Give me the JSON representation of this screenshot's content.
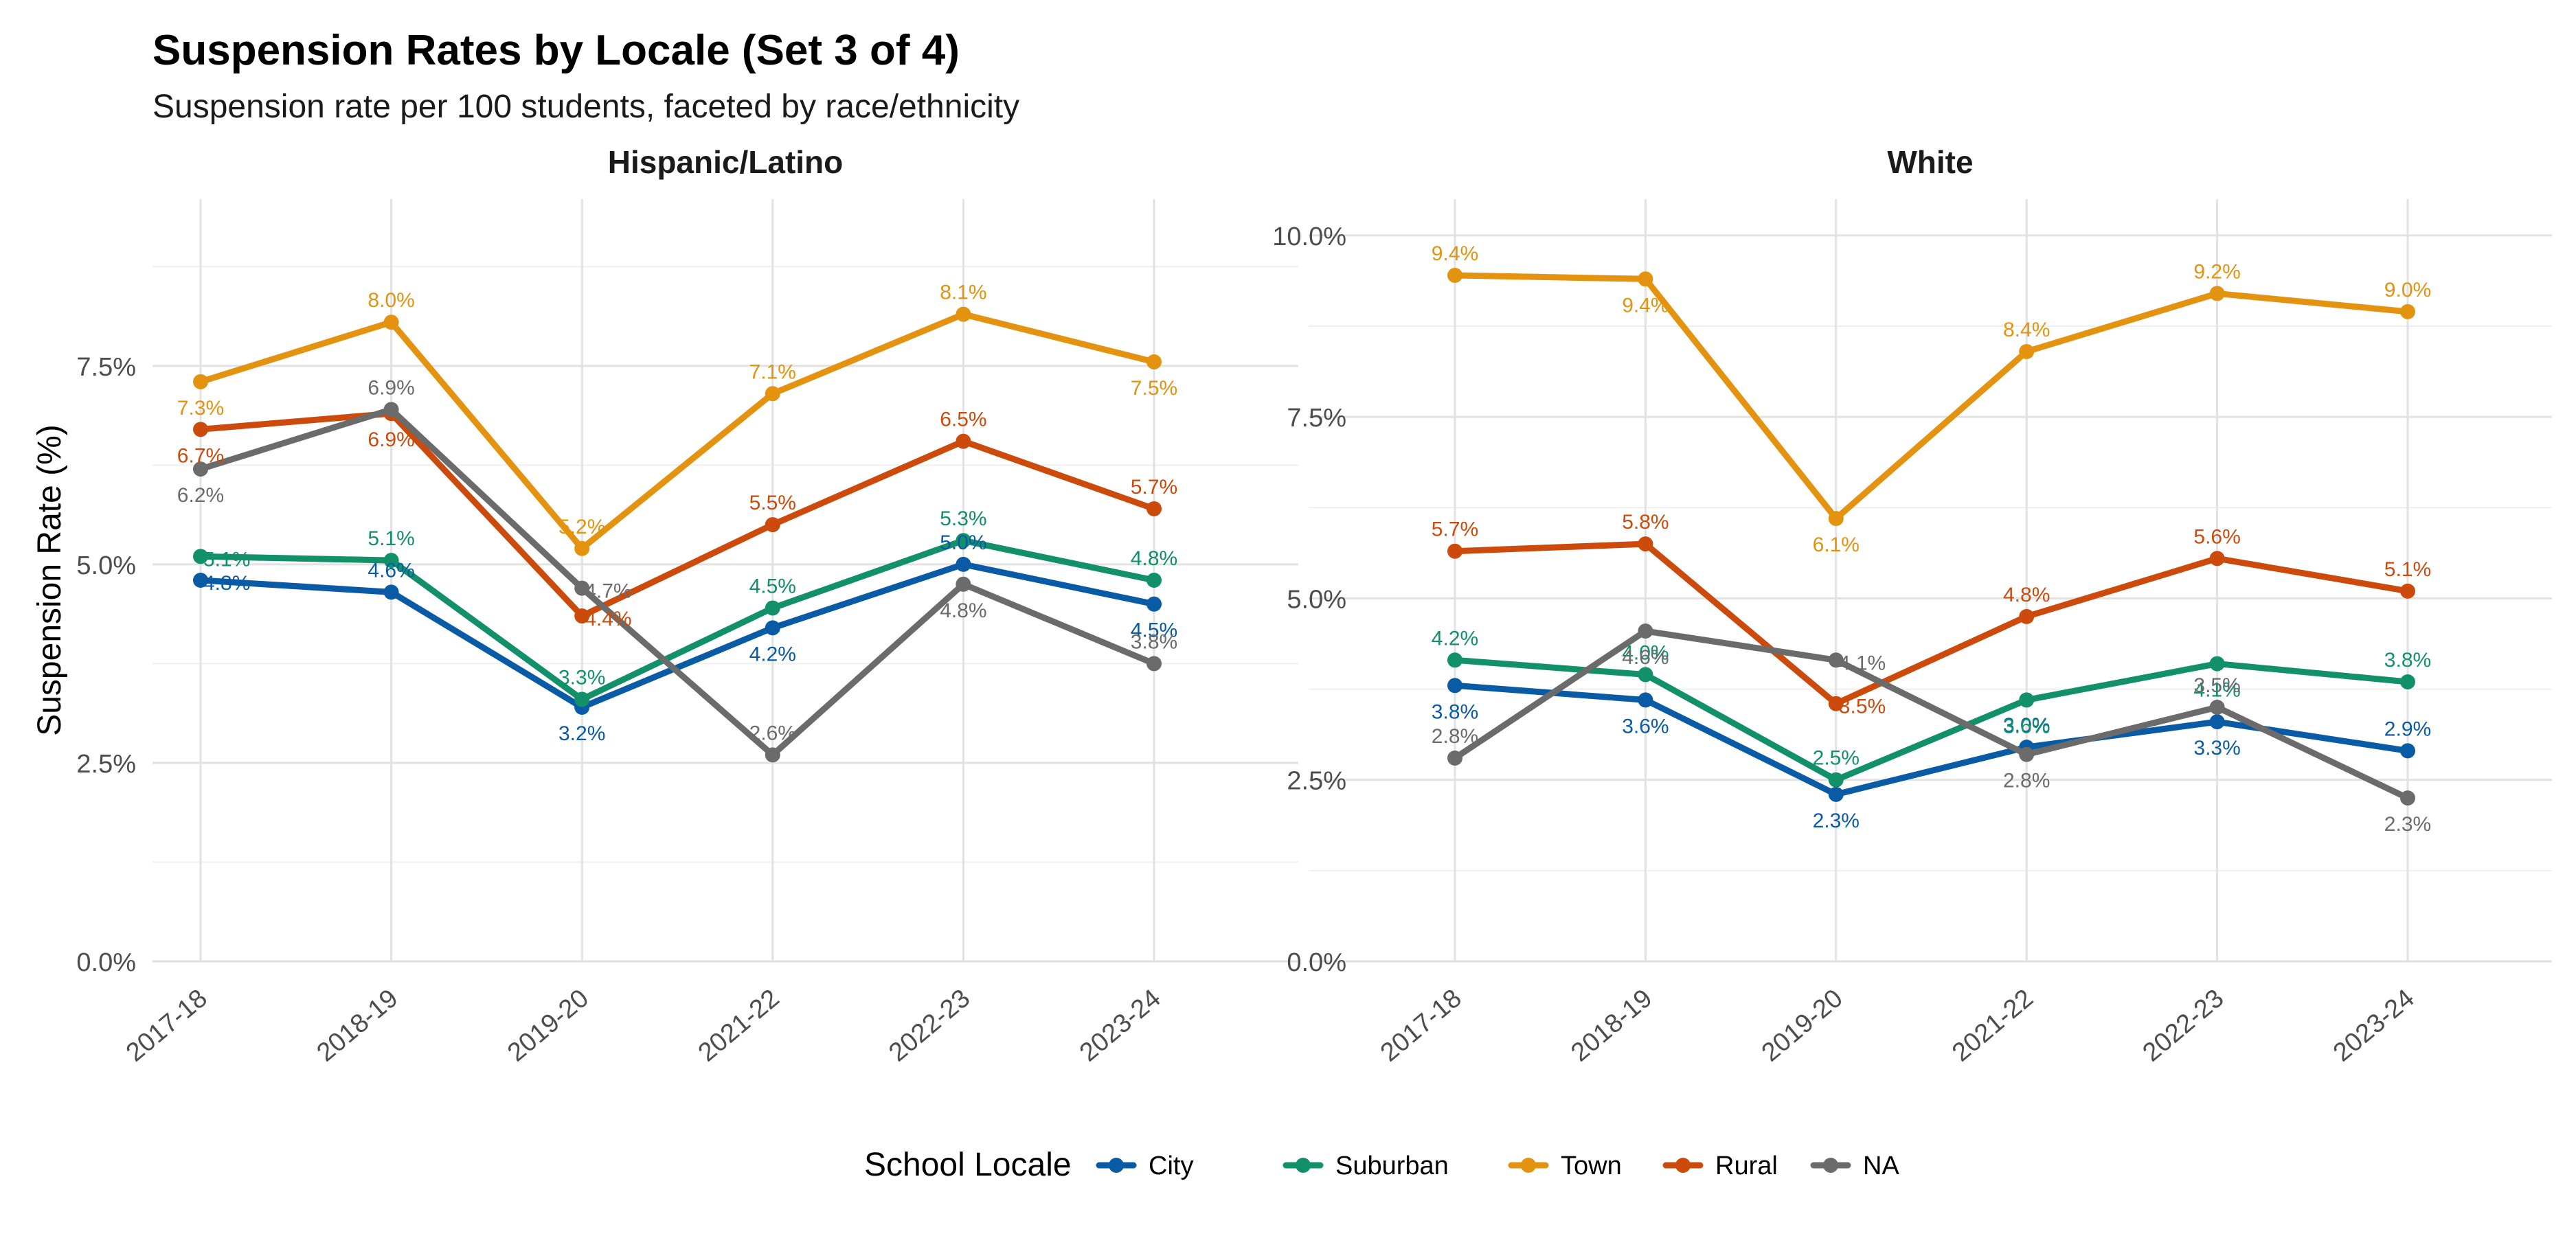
{
  "title": "Suspension Rates by Locale (Set 3 of 4)",
  "subtitle": "Suspension rate per 100 students, faceted by race/ethnicity",
  "ylabel": "Suspension Rate (%)",
  "legend": {
    "title": "School Locale",
    "placement": "bottom"
  },
  "colors": {
    "City": "#0a5ba6",
    "Suburban": "#12906a",
    "Town": "#e3930f",
    "Rural": "#cc4b0c",
    "NA": "#6b6b6b"
  },
  "chart_data": [
    {
      "type": "line",
      "facet": "Hispanic/Latino",
      "categories": [
        "2017-18",
        "2018-19",
        "2019-20",
        "2021-22",
        "2022-23",
        "2023-24"
      ],
      "ylim": [
        0,
        9.6
      ],
      "yticks": [
        0,
        2.5,
        5.0,
        7.5
      ],
      "ytick_labels": [
        "0.0%",
        "2.5%",
        "5.0%",
        "7.5%"
      ],
      "grid": true,
      "series": [
        {
          "name": "City",
          "values": [
            4.8,
            4.65,
            3.2,
            4.2,
            5.0,
            4.5
          ],
          "labels": [
            "4.8%",
            "4.6%",
            "3.2%",
            "4.2%",
            "5.0%",
            "4.5%"
          ],
          "label_pos": [
            "right",
            "above",
            "below",
            "below",
            "above",
            "below"
          ]
        },
        {
          "name": "Suburban",
          "values": [
            5.1,
            5.05,
            3.3,
            4.45,
            5.3,
            4.8
          ],
          "labels": [
            "5.1%",
            "5.1%",
            "3.3%",
            "4.5%",
            "5.3%",
            "4.8%"
          ],
          "label_pos": [
            "right",
            "above",
            "above",
            "above",
            "above",
            "above"
          ]
        },
        {
          "name": "Town",
          "values": [
            7.3,
            8.05,
            5.2,
            7.15,
            8.15,
            7.55
          ],
          "labels": [
            "7.3%",
            "8.0%",
            "5.2%",
            "7.1%",
            "8.1%",
            "7.5%"
          ],
          "label_pos": [
            "below",
            "above",
            "above",
            "above",
            "above",
            "below"
          ]
        },
        {
          "name": "Rural",
          "values": [
            6.7,
            6.9,
            4.35,
            5.5,
            6.55,
            5.7
          ],
          "labels": [
            "6.7%",
            "6.9%",
            "4.4%",
            "5.5%",
            "6.5%",
            "5.7%"
          ],
          "label_pos": [
            "below",
            "below",
            "right",
            "above",
            "above",
            "above"
          ]
        },
        {
          "name": "NA",
          "values": [
            6.2,
            6.95,
            4.7,
            2.6,
            4.75,
            3.75
          ],
          "labels": [
            "6.2%",
            "6.9%",
            "4.7%",
            "2.6%",
            "4.8%",
            "3.8%"
          ],
          "label_pos": [
            "below",
            "above",
            "right",
            "above",
            "below",
            "above"
          ]
        }
      ]
    },
    {
      "type": "line",
      "facet": "White",
      "categories": [
        "2017-18",
        "2018-19",
        "2019-20",
        "2021-22",
        "2022-23",
        "2023-24"
      ],
      "ylim": [
        0,
        10.5
      ],
      "yticks": [
        0,
        2.5,
        5.0,
        7.5,
        10.0
      ],
      "ytick_labels": [
        "0.0%",
        "2.5%",
        "5.0%",
        "7.5%",
        "10.0%"
      ],
      "grid": true,
      "series": [
        {
          "name": "City",
          "values": [
            3.8,
            3.6,
            2.3,
            2.95,
            3.3,
            2.9
          ],
          "labels": [
            "3.8%",
            "3.6%",
            "2.3%",
            "3.0%",
            "3.3%",
            "2.9%"
          ],
          "label_pos": [
            "below",
            "below",
            "below",
            "above",
            "below",
            "above"
          ]
        },
        {
          "name": "Suburban",
          "values": [
            4.15,
            3.95,
            2.5,
            3.6,
            4.1,
            3.85
          ],
          "labels": [
            "4.2%",
            "4.0%",
            "2.5%",
            "3.6%",
            "4.1%",
            "3.8%"
          ],
          "label_pos": [
            "above",
            "above",
            "above",
            "below",
            "below",
            "above"
          ]
        },
        {
          "name": "Town",
          "values": [
            9.45,
            9.4,
            6.1,
            8.4,
            9.2,
            8.95
          ],
          "labels": [
            "9.4%",
            "9.4%",
            "6.1%",
            "8.4%",
            "9.2%",
            "9.0%"
          ],
          "label_pos": [
            "above",
            "below",
            "below",
            "above",
            "above",
            "above"
          ]
        },
        {
          "name": "Rural",
          "values": [
            5.65,
            5.75,
            3.55,
            4.75,
            5.55,
            5.1
          ],
          "labels": [
            "5.7%",
            "5.8%",
            "3.5%",
            "4.8%",
            "5.6%",
            "5.1%"
          ],
          "label_pos": [
            "above",
            "above",
            "right",
            "above",
            "above",
            "above"
          ]
        },
        {
          "name": "NA",
          "values": [
            2.8,
            4.55,
            4.15,
            2.85,
            3.5,
            2.25
          ],
          "labels": [
            "2.8%",
            "4.6%",
            "4.1%",
            "2.8%",
            "3.5%",
            "2.3%"
          ],
          "label_pos": [
            "above",
            "below",
            "right",
            "below",
            "above",
            "below"
          ]
        }
      ]
    }
  ],
  "series_order": [
    "City",
    "Suburban",
    "Town",
    "Rural",
    "NA"
  ],
  "draw_order": [
    "City",
    "Suburban",
    "Town",
    "Rural",
    "NA"
  ]
}
